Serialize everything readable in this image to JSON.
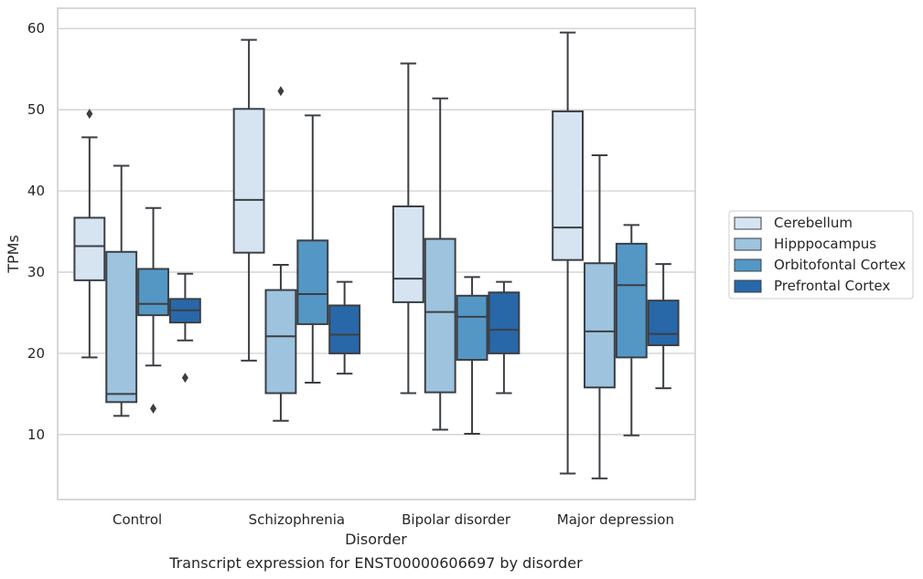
{
  "chart_data": {
    "type": "boxplot",
    "caption": "Transcript expression for ENST00000606697 by disorder",
    "xlabel": "Disorder",
    "ylabel": "TPMs",
    "ylim": [
      2,
      62.5
    ],
    "yticks": [
      10,
      20,
      30,
      40,
      50,
      60
    ],
    "grid": "horizontal",
    "legend_position": "right",
    "categories": [
      "Control",
      "Schizophrenia",
      "Bipolar disorder",
      "Major depression"
    ],
    "series": [
      {
        "name": "Cerebellum",
        "color": "#d6e4f2",
        "boxes": [
          {
            "whislo": 19.5,
            "q1": 29,
            "med": 33.2,
            "q3": 36.7,
            "whishi": 46.6,
            "fliers": [
              49.5
            ]
          },
          {
            "whislo": 19.1,
            "q1": 32.4,
            "med": 38.9,
            "q3": 50.1,
            "whishi": 58.6,
            "fliers": []
          },
          {
            "whislo": 15.1,
            "q1": 26.3,
            "med": 29.2,
            "q3": 38.1,
            "whishi": 55.7,
            "fliers": []
          },
          {
            "whislo": 5.2,
            "q1": 31.5,
            "med": 35.5,
            "q3": 49.8,
            "whishi": 59.5,
            "fliers": []
          }
        ]
      },
      {
        "name": "Hipppocampus",
        "color": "#9dc3de",
        "boxes": [
          {
            "whislo": 12.3,
            "q1": 14,
            "med": 15,
            "q3": 32.5,
            "whishi": 43.1,
            "fliers": []
          },
          {
            "whislo": 11.7,
            "q1": 15.1,
            "med": 22.1,
            "q3": 27.8,
            "whishi": 30.9,
            "fliers": [
              52.3
            ]
          },
          {
            "whislo": 10.6,
            "q1": 15.2,
            "med": 25.1,
            "q3": 34.1,
            "whishi": 51.4,
            "fliers": []
          },
          {
            "whislo": 4.6,
            "q1": 15.8,
            "med": 22.7,
            "q3": 31.1,
            "whishi": 44.4,
            "fliers": []
          }
        ]
      },
      {
        "name": "Orbitofontal Cortex",
        "color": "#5497c5",
        "boxes": [
          {
            "whislo": 18.5,
            "q1": 24.7,
            "med": 26.1,
            "q3": 30.4,
            "whishi": 37.9,
            "fliers": [
              13.2
            ]
          },
          {
            "whislo": 16.4,
            "q1": 23.6,
            "med": 27.3,
            "q3": 33.9,
            "whishi": 49.3,
            "fliers": []
          },
          {
            "whislo": 10.1,
            "q1": 19.2,
            "med": 24.5,
            "q3": 27.1,
            "whishi": 29.4,
            "fliers": []
          },
          {
            "whislo": 9.9,
            "q1": 19.5,
            "med": 28.4,
            "q3": 33.5,
            "whishi": 35.8,
            "fliers": []
          }
        ]
      },
      {
        "name": "Prefrontal Cortex",
        "color": "#2868a9",
        "boxes": [
          {
            "whislo": 21.6,
            "q1": 23.8,
            "med": 25.3,
            "q3": 26.7,
            "whishi": 29.8,
            "fliers": [
              17
            ]
          },
          {
            "whislo": 17.5,
            "q1": 20,
            "med": 22.3,
            "q3": 25.9,
            "whishi": 28.8,
            "fliers": []
          },
          {
            "whislo": 15.1,
            "q1": 20,
            "med": 22.9,
            "q3": 27.5,
            "whishi": 28.8,
            "fliers": []
          },
          {
            "whislo": 15.7,
            "q1": 21,
            "med": 22.4,
            "q3": 26.5,
            "whishi": 31,
            "fliers": []
          }
        ]
      }
    ]
  }
}
